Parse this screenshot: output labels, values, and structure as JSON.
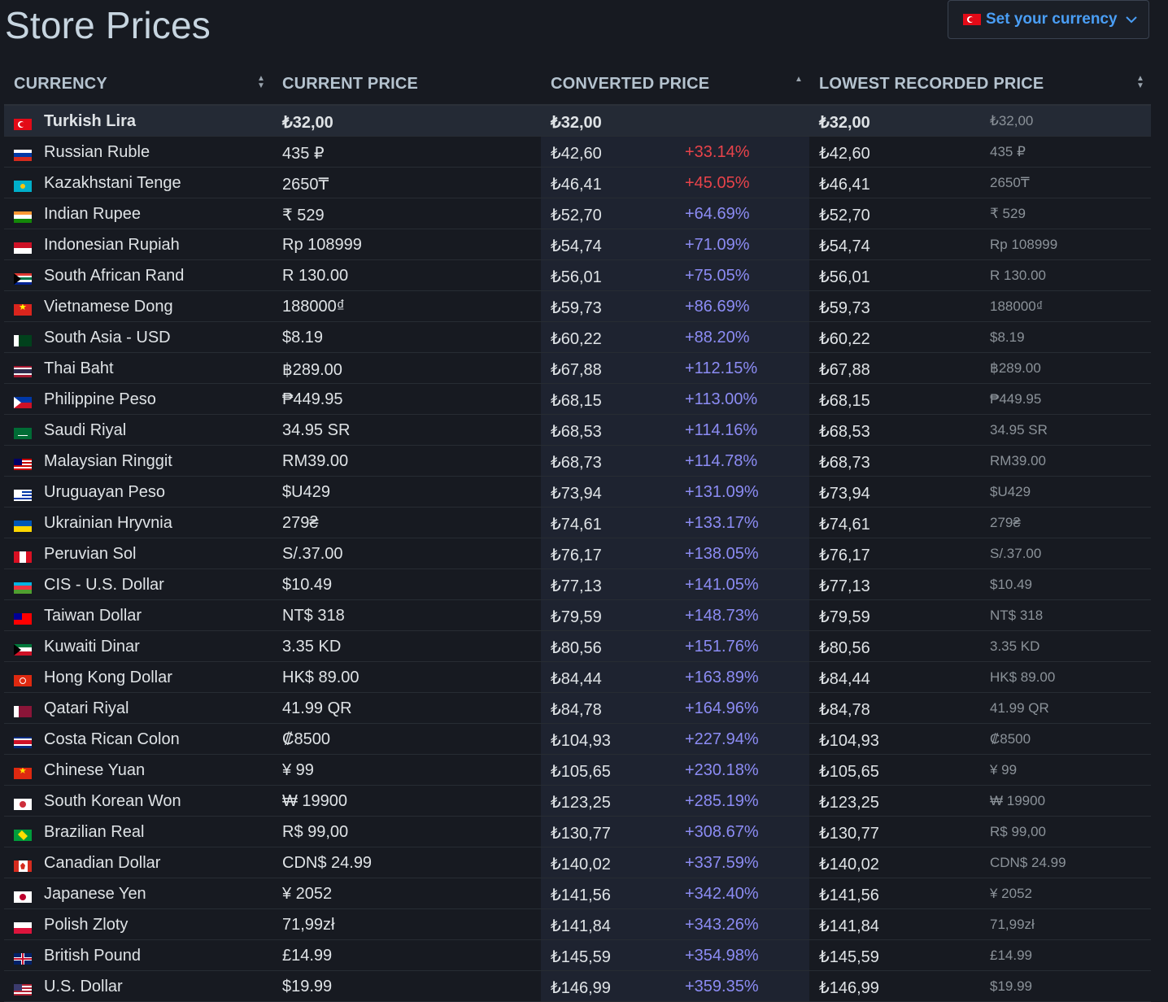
{
  "header": {
    "title": "Store Prices",
    "currency_button": "Set your currency"
  },
  "table": {
    "columns": {
      "currency": "CURRENCY",
      "current_price": "CURRENT PRICE",
      "converted_price": "CONVERTED PRICE",
      "lowest_recorded_price": "LOWEST RECORDED PRICE"
    },
    "rows": [
      {
        "name": "Turkish Lira",
        "current": "₺32,00",
        "converted": "₺32,00",
        "diff": "",
        "lowest": "₺32,00",
        "lowest_orig": "₺32,00",
        "flag": "tr",
        "highlight": true
      },
      {
        "name": "Russian Ruble",
        "current": "435 ₽",
        "converted": "₺42,60",
        "diff": "+33.14%",
        "lowest": "₺42,60",
        "lowest_orig": "435 ₽",
        "flag": "ru",
        "diff_color": "red"
      },
      {
        "name": "Kazakhstani Tenge",
        "current": "2650₸",
        "converted": "₺46,41",
        "diff": "+45.05%",
        "lowest": "₺46,41",
        "lowest_orig": "2650₸",
        "flag": "kz",
        "diff_color": "red"
      },
      {
        "name": "Indian Rupee",
        "current": "₹ 529",
        "converted": "₺52,70",
        "diff": "+64.69%",
        "lowest": "₺52,70",
        "lowest_orig": "₹ 529",
        "flag": "in"
      },
      {
        "name": "Indonesian Rupiah",
        "current": "Rp 108999",
        "converted": "₺54,74",
        "diff": "+71.09%",
        "lowest": "₺54,74",
        "lowest_orig": "Rp 108999",
        "flag": "id"
      },
      {
        "name": "South African Rand",
        "current": "R 130.00",
        "converted": "₺56,01",
        "diff": "+75.05%",
        "lowest": "₺56,01",
        "lowest_orig": "R 130.00",
        "flag": "za"
      },
      {
        "name": "Vietnamese Dong",
        "current": "188000₫",
        "converted": "₺59,73",
        "diff": "+86.69%",
        "lowest": "₺59,73",
        "lowest_orig": "188000₫",
        "flag": "vn"
      },
      {
        "name": "South Asia - USD",
        "current": "$8.19",
        "converted": "₺60,22",
        "diff": "+88.20%",
        "lowest": "₺60,22",
        "lowest_orig": "$8.19",
        "flag": "pk"
      },
      {
        "name": "Thai Baht",
        "current": "฿289.00",
        "converted": "₺67,88",
        "diff": "+112.15%",
        "lowest": "₺67,88",
        "lowest_orig": "฿289.00",
        "flag": "th"
      },
      {
        "name": "Philippine Peso",
        "current": "₱449.95",
        "converted": "₺68,15",
        "diff": "+113.00%",
        "lowest": "₺68,15",
        "lowest_orig": "₱449.95",
        "flag": "ph"
      },
      {
        "name": "Saudi Riyal",
        "current": "34.95 SR",
        "converted": "₺68,53",
        "diff": "+114.16%",
        "lowest": "₺68,53",
        "lowest_orig": "34.95 SR",
        "flag": "sa"
      },
      {
        "name": "Malaysian Ringgit",
        "current": "RM39.00",
        "converted": "₺68,73",
        "diff": "+114.78%",
        "lowest": "₺68,73",
        "lowest_orig": "RM39.00",
        "flag": "my"
      },
      {
        "name": "Uruguayan Peso",
        "current": "$U429",
        "converted": "₺73,94",
        "diff": "+131.09%",
        "lowest": "₺73,94",
        "lowest_orig": "$U429",
        "flag": "uy"
      },
      {
        "name": "Ukrainian Hryvnia",
        "current": "279₴",
        "converted": "₺74,61",
        "diff": "+133.17%",
        "lowest": "₺74,61",
        "lowest_orig": "279₴",
        "flag": "ua"
      },
      {
        "name": "Peruvian Sol",
        "current": "S/.37.00",
        "converted": "₺76,17",
        "diff": "+138.05%",
        "lowest": "₺76,17",
        "lowest_orig": "S/.37.00",
        "flag": "pe"
      },
      {
        "name": "CIS - U.S. Dollar",
        "current": "$10.49",
        "converted": "₺77,13",
        "diff": "+141.05%",
        "lowest": "₺77,13",
        "lowest_orig": "$10.49",
        "flag": "az"
      },
      {
        "name": "Taiwan Dollar",
        "current": "NT$ 318",
        "converted": "₺79,59",
        "diff": "+148.73%",
        "lowest": "₺79,59",
        "lowest_orig": "NT$ 318",
        "flag": "tw"
      },
      {
        "name": "Kuwaiti Dinar",
        "current": "3.35 KD",
        "converted": "₺80,56",
        "diff": "+151.76%",
        "lowest": "₺80,56",
        "lowest_orig": "3.35 KD",
        "flag": "kw"
      },
      {
        "name": "Hong Kong Dollar",
        "current": "HK$ 89.00",
        "converted": "₺84,44",
        "diff": "+163.89%",
        "lowest": "₺84,44",
        "lowest_orig": "HK$ 89.00",
        "flag": "hk"
      },
      {
        "name": "Qatari Riyal",
        "current": "41.99 QR",
        "converted": "₺84,78",
        "diff": "+164.96%",
        "lowest": "₺84,78",
        "lowest_orig": "41.99 QR",
        "flag": "qa"
      },
      {
        "name": "Costa Rican Colon",
        "current": "₡8500",
        "converted": "₺104,93",
        "diff": "+227.94%",
        "lowest": "₺104,93",
        "lowest_orig": "₡8500",
        "flag": "cr"
      },
      {
        "name": "Chinese Yuan",
        "current": "¥ 99",
        "converted": "₺105,65",
        "diff": "+230.18%",
        "lowest": "₺105,65",
        "lowest_orig": "¥ 99",
        "flag": "cn"
      },
      {
        "name": "South Korean Won",
        "current": "₩ 19900",
        "converted": "₺123,25",
        "diff": "+285.19%",
        "lowest": "₺123,25",
        "lowest_orig": "₩ 19900",
        "flag": "kr"
      },
      {
        "name": "Brazilian Real",
        "current": "R$ 99,00",
        "converted": "₺130,77",
        "diff": "+308.67%",
        "lowest": "₺130,77",
        "lowest_orig": "R$ 99,00",
        "flag": "br"
      },
      {
        "name": "Canadian Dollar",
        "current": "CDN$ 24.99",
        "converted": "₺140,02",
        "diff": "+337.59%",
        "lowest": "₺140,02",
        "lowest_orig": "CDN$ 24.99",
        "flag": "ca"
      },
      {
        "name": "Japanese Yen",
        "current": "¥ 2052",
        "converted": "₺141,56",
        "diff": "+342.40%",
        "lowest": "₺141,56",
        "lowest_orig": "¥ 2052",
        "flag": "jp"
      },
      {
        "name": "Polish Zloty",
        "current": "71,99zł",
        "converted": "₺141,84",
        "diff": "+343.26%",
        "lowest": "₺141,84",
        "lowest_orig": "71,99zł",
        "flag": "pl"
      },
      {
        "name": "British Pound",
        "current": "£14.99",
        "converted": "₺145,59",
        "diff": "+354.98%",
        "lowest": "₺145,59",
        "lowest_orig": "£14.99",
        "flag": "gb"
      },
      {
        "name": "U.S. Dollar",
        "current": "$19.99",
        "converted": "₺146,99",
        "diff": "+359.35%",
        "lowest": "₺146,99",
        "lowest_orig": "$19.99",
        "flag": "us"
      }
    ]
  }
}
